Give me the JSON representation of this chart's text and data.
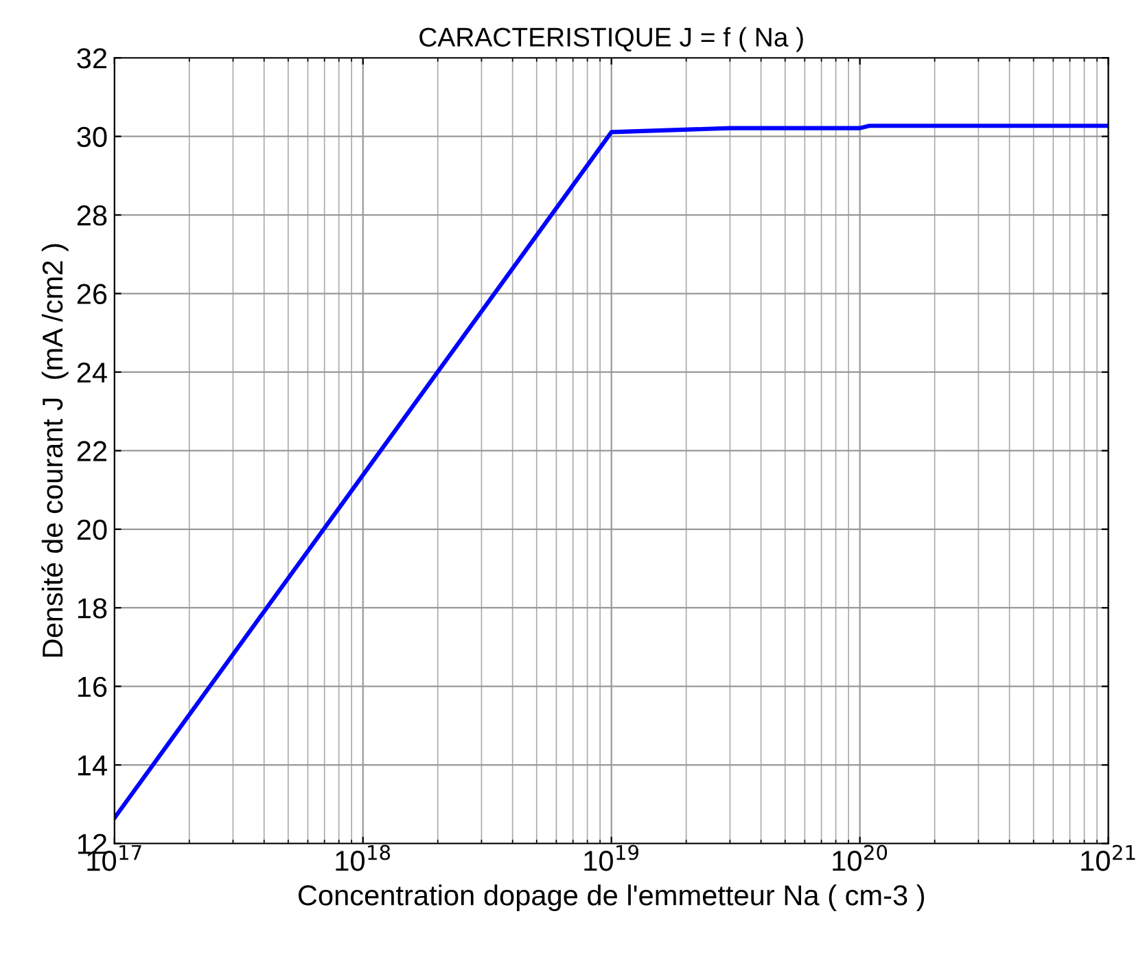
{
  "chart_data": {
    "type": "line",
    "title": "CARACTERISTIQUE J = f ( Na )",
    "xlabel": "Concentration dopage de l'emmetteur Na ( cm-3 )",
    "ylabel": "Densité de courant J  (mA /cm2 )",
    "x": [
      1e+17,
      1e+19,
      3e+19,
      1e+20,
      1.09e+20,
      1e+21
    ],
    "series": [
      {
        "color": "#0000ff",
        "values": [
          12.65,
          30.11,
          30.21,
          30.21,
          30.27,
          30.27
        ]
      }
    ],
    "log": "x",
    "xlim": [
      1e+17,
      1e+21
    ],
    "xticks": [
      {
        "value": 1e+17,
        "label": "10$^{17}$"
      },
      {
        "value": 1e+18,
        "label": "10$^{18}$"
      },
      {
        "value": 1e+19,
        "label": "10$^{19}$"
      },
      {
        "value": 1e+20,
        "label": "10$^{20}$"
      },
      {
        "value": 1e+21,
        "label": "10$^{21}$"
      }
    ],
    "ylim": [
      12,
      32
    ],
    "yticks": [
      12,
      14,
      16,
      18,
      20,
      22,
      24,
      26,
      28,
      30,
      32
    ],
    "grid": true,
    "line_style": "solid",
    "marker": "none"
  }
}
